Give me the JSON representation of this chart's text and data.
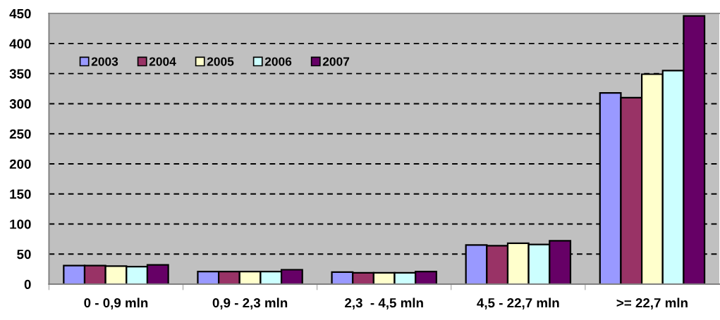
{
  "chart_data": {
    "type": "bar",
    "categories": [
      "0 - 0,9 mln",
      "0,9 - 2,3 mln",
      "2,3  - 4,5 mln",
      "4,5 - 22,7 mln",
      ">= 22,7 mln"
    ],
    "series": [
      {
        "name": "2003",
        "color": "#9999ff",
        "values": [
          31,
          21,
          20,
          65,
          318
        ]
      },
      {
        "name": "2004",
        "color": "#993366",
        "values": [
          31,
          21,
          19,
          64,
          310
        ]
      },
      {
        "name": "2005",
        "color": "#ffffcc",
        "values": [
          30,
          21,
          19,
          68,
          349
        ]
      },
      {
        "name": "2006",
        "color": "#ccffff",
        "values": [
          29,
          21,
          19,
          66,
          355
        ]
      },
      {
        "name": "2007",
        "color": "#660066",
        "values": [
          32,
          24,
          21,
          72,
          446
        ]
      }
    ],
    "ylim": [
      0,
      450
    ],
    "yticks": [
      0,
      50,
      100,
      150,
      200,
      250,
      300,
      350,
      400,
      450
    ],
    "grid": "y",
    "legend": "top left"
  }
}
